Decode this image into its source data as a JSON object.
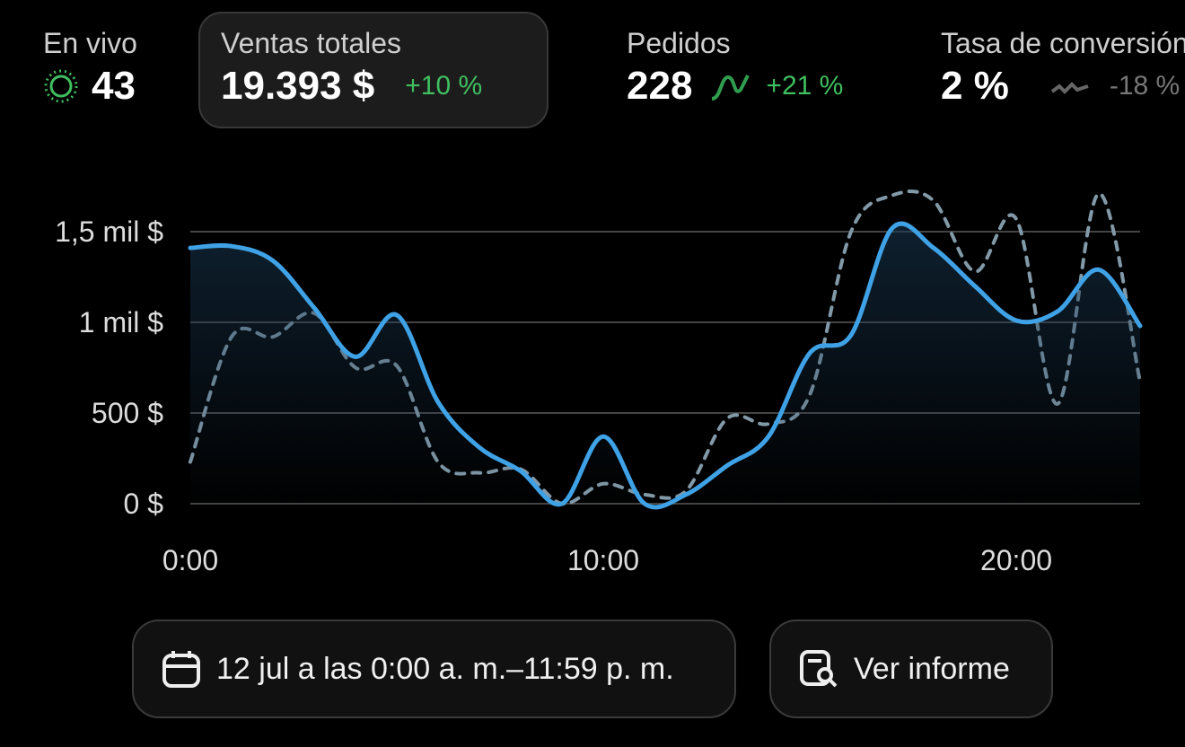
{
  "metrics": [
    {
      "label": "En vivo",
      "value": "43"
    },
    {
      "label": "Ventas totales",
      "value": "19.393 $",
      "change": "+10 %"
    },
    {
      "label": "Pedidos",
      "value": "228",
      "change": "+21 %"
    },
    {
      "label": "Tasa de conversión",
      "value": "2 %",
      "change": "-18 %"
    }
  ],
  "chart_data": {
    "type": "line",
    "x": [
      0,
      1,
      2,
      3,
      4,
      5,
      6,
      7,
      8,
      9,
      10,
      11,
      12,
      13,
      14,
      15,
      16,
      17,
      18,
      19,
      20,
      21,
      22,
      23
    ],
    "series": [
      {
        "color": "#3fa2e6",
        "dashed": false,
        "area": true,
        "values": [
          1410,
          1420,
          1340,
          1080,
          810,
          1040,
          560,
          310,
          180,
          0,
          370,
          0,
          50,
          210,
          370,
          830,
          930,
          1520,
          1410,
          1200,
          1010,
          1060,
          1290,
          980
        ]
      },
      {
        "color": "#8299a8",
        "dashed": true,
        "area": false,
        "values": [
          230,
          920,
          920,
          1050,
          750,
          760,
          230,
          170,
          190,
          0,
          110,
          50,
          70,
          470,
          440,
          600,
          1500,
          1700,
          1670,
          1280,
          1570,
          550,
          1710,
          670
        ]
      }
    ],
    "xlim": [
      0,
      23
    ],
    "xticks": [
      {
        "value": 0,
        "label": "0:00"
      },
      {
        "value": 10,
        "label": "10:00"
      },
      {
        "value": 20,
        "label": "20:00"
      }
    ],
    "ylim": [
      0,
      1500
    ],
    "yticks": [
      {
        "value": 0,
        "label": "0 $"
      },
      {
        "value": 500,
        "label": "500 $"
      },
      {
        "value": 1000,
        "label": "1 mil $"
      },
      {
        "value": 1500,
        "label": "1,5 mil $"
      }
    ],
    "grid": true
  },
  "date_range": "12 jul a las 0:00 a. m.–11:59 p. m.",
  "report_button": "Ver informe"
}
